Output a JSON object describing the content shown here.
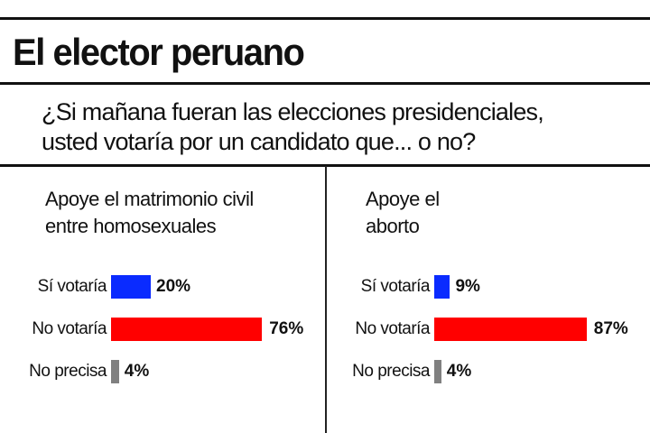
{
  "title": "El elector peruano",
  "question_line1": "¿Si mañana fueran las elecciones presidenciales,",
  "question_line2": "usted votaría por un candidato que... o no?",
  "chart_data": [
    {
      "type": "bar",
      "title_line1": "Apoye el matrimonio civil",
      "title_line2": "entre homosexuales",
      "categories": [
        "Sí votaría",
        "No votaría",
        "No precisa"
      ],
      "values": [
        20,
        76,
        4
      ],
      "labels": [
        "20%",
        "76%",
        "4%"
      ],
      "colors": [
        "#0a2bff",
        "#ff0000",
        "#808080"
      ]
    },
    {
      "type": "bar",
      "title_line1": "Apoye el",
      "title_line2": "aborto",
      "categories": [
        "Sí votaría",
        "No votaría",
        "No precisa"
      ],
      "values": [
        9,
        87,
        4
      ],
      "labels": [
        "9%",
        "87%",
        "4%"
      ],
      "colors": [
        "#0a2bff",
        "#ff0000",
        "#808080"
      ]
    }
  ]
}
